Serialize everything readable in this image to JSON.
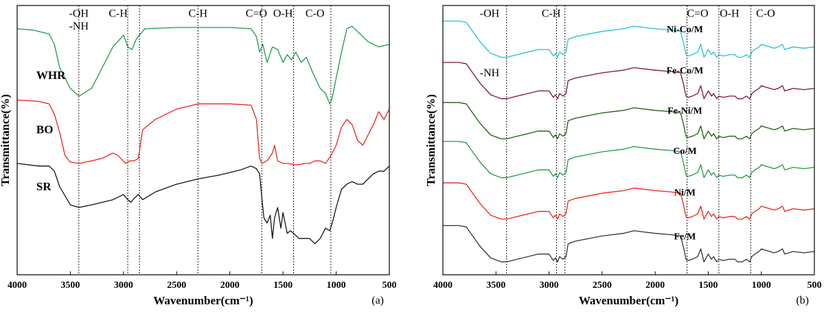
{
  "chart_data": [
    {
      "panel": "(a)",
      "type": "line",
      "xlabel": "Wavenumber(cm⁻¹)",
      "ylabel": "Transmittance(%)",
      "xlim": [
        4000,
        500
      ],
      "x_ticks": [
        4000,
        3500,
        3000,
        2500,
        2000,
        1500,
        1000,
        500
      ],
      "reference_lines": [
        3420,
        2960,
        2850,
        2300,
        1700,
        1400,
        1050
      ],
      "band_labels": [
        {
          "text": "-OH",
          "x": 3420,
          "y": 101
        },
        {
          "text": "-NH",
          "x": 3420,
          "y": 96
        },
        {
          "text": "C-H",
          "x": 3050,
          "y": 101
        },
        {
          "text": "C-H",
          "x": 2300,
          "y": 101
        },
        {
          "text": "C=O",
          "x": 1750,
          "y": 101
        },
        {
          "text": "O-H",
          "x": 1500,
          "y": 101
        },
        {
          "text": "C-O",
          "x": 1200,
          "y": 101
        }
      ],
      "ylim": [
        0,
        104
      ],
      "series": [
        {
          "name": "WHR",
          "color": "#1a9a46",
          "label_x": 3820,
          "label_y": 77,
          "x": [
            4000,
            3850,
            3700,
            3650,
            3600,
            3500,
            3420,
            3300,
            3200,
            3100,
            3000,
            2960,
            2920,
            2880,
            2800,
            2500,
            2200,
            2000,
            1800,
            1750,
            1720,
            1690,
            1650,
            1600,
            1550,
            1500,
            1460,
            1420,
            1380,
            1330,
            1280,
            1220,
            1150,
            1100,
            1060,
            1040,
            1000,
            950,
            900,
            850,
            800,
            750,
            700,
            600,
            500
          ],
          "y": [
            95,
            94.5,
            93,
            89,
            80,
            72,
            69,
            72,
            80,
            88,
            92.5,
            88,
            87,
            91,
            95,
            95.5,
            95.5,
            95.5,
            95,
            92,
            86,
            89,
            82,
            88,
            87,
            82,
            85,
            83,
            86,
            82,
            84,
            78,
            72,
            70,
            66,
            68,
            76,
            86,
            95,
            96,
            94,
            92,
            90,
            88,
            89
          ]
        },
        {
          "name": "BO",
          "color": "#e8231b",
          "label_x": 3820,
          "label_y": 56,
          "x": [
            4000,
            3800,
            3700,
            3650,
            3600,
            3550,
            3500,
            3420,
            3300,
            3200,
            3100,
            3050,
            2980,
            2940,
            2900,
            2860,
            2820,
            2700,
            2500,
            2300,
            2200,
            2000,
            1800,
            1750,
            1720,
            1700,
            1650,
            1600,
            1580,
            1550,
            1500,
            1450,
            1400,
            1350,
            1300,
            1250,
            1200,
            1150,
            1100,
            1050,
            1000,
            950,
            900,
            850,
            800,
            750,
            700,
            650,
            600,
            550,
            500
          ],
          "y": [
            67.5,
            67,
            66,
            62,
            55,
            46,
            43.5,
            43,
            44,
            45,
            47,
            46,
            43,
            44,
            44,
            45,
            56,
            60,
            64,
            66,
            66,
            66,
            65.5,
            60,
            45,
            43,
            44,
            47,
            50,
            44,
            43,
            43,
            42.5,
            42.5,
            43,
            43,
            44,
            44,
            43,
            46,
            50,
            57,
            60,
            58,
            52,
            50,
            54,
            58,
            63,
            60,
            64
          ]
        },
        {
          "name": "SR",
          "color": "#111111",
          "label_x": 3820,
          "label_y": 34,
          "x": [
            4000,
            3800,
            3700,
            3650,
            3600,
            3500,
            3420,
            3300,
            3200,
            3100,
            3000,
            2960,
            2930,
            2900,
            2860,
            2820,
            2700,
            2500,
            2300,
            2100,
            2000,
            1900,
            1800,
            1750,
            1720,
            1700,
            1680,
            1650,
            1620,
            1600,
            1580,
            1550,
            1520,
            1500,
            1460,
            1430,
            1400,
            1350,
            1300,
            1250,
            1200,
            1150,
            1100,
            1060,
            1030,
            1000,
            950,
            900,
            850,
            800,
            750,
            700,
            650,
            600,
            550,
            500
          ],
          "y": [
            43,
            42,
            42,
            40,
            34,
            27,
            26,
            27,
            28,
            29,
            31,
            29,
            28,
            29.5,
            31,
            29,
            32,
            35,
            37,
            38.5,
            39.5,
            40.5,
            42,
            41,
            39,
            30,
            22,
            20,
            23,
            14,
            22,
            26,
            18,
            24,
            16,
            17,
            16,
            14,
            14,
            14,
            12,
            14,
            18,
            17,
            21,
            26,
            33,
            35,
            36,
            35,
            35,
            37,
            39,
            40,
            40,
            42
          ]
        }
      ]
    },
    {
      "panel": "(b)",
      "type": "line",
      "xlabel": "Wavenumber(cm⁻¹)",
      "ylabel": "Transmittance(%)",
      "xlim": [
        4000,
        500
      ],
      "x_ticks": [
        4000,
        3500,
        3000,
        2500,
        2000,
        1500,
        1000,
        500
      ],
      "reference_lines": [
        3400,
        2930,
        2850,
        1700,
        1400,
        1100
      ],
      "band_labels": [
        {
          "text": "-OH",
          "x": 3560,
          "y": 101
        },
        {
          "text": "-NH",
          "x": 3560,
          "y": 78
        },
        {
          "text": "C-H",
          "x": 2980,
          "y": 101
        },
        {
          "text": "C=O",
          "x": 1600,
          "y": 101
        },
        {
          "text": "O-H",
          "x": 1300,
          "y": 101
        },
        {
          "text": "C-O",
          "x": 960,
          "y": 101
        }
      ],
      "ylim": [
        0,
        104
      ],
      "series": [
        {
          "name": "Ni-Co/M",
          "color": "#22c1d1",
          "label_x": 1720,
          "label_y": 95,
          "offset": 0
        },
        {
          "name": "Fe-Co/M",
          "color": "#7a1238",
          "label_x": 1720,
          "label_y": 79,
          "offset": -16
        },
        {
          "name": "Fe-Ni/M",
          "color": "#1f5c11",
          "label_x": 1720,
          "label_y": 63.5,
          "offset": -31.5
        },
        {
          "name": "Co/M",
          "color": "#1a9a46",
          "label_x": 1720,
          "label_y": 48,
          "offset": -46.5
        },
        {
          "name": "Ni/M",
          "color": "#e8231b",
          "label_x": 1720,
          "label_y": 32,
          "offset": -62.5
        },
        {
          "name": "Fe/M",
          "color": "#333333",
          "label_x": 1720,
          "label_y": 15,
          "offset": -79
        }
      ],
      "base_spectrum": {
        "x": [
          4000,
          3850,
          3780,
          3720,
          3650,
          3550,
          3450,
          3400,
          3300,
          3100,
          3000,
          2960,
          2940,
          2920,
          2900,
          2870,
          2840,
          2820,
          2750,
          2500,
          2300,
          2200,
          2000,
          1850,
          1760,
          1730,
          1710,
          1690,
          1650,
          1600,
          1570,
          1540,
          1500,
          1470,
          1450,
          1420,
          1400,
          1360,
          1300,
          1250,
          1220,
          1180,
          1140,
          1110,
          1090,
          1060,
          1020,
          1000,
          960,
          920,
          880,
          840,
          800,
          780,
          740,
          700,
          600,
          500
        ],
        "y": [
          98,
          98,
          97.5,
          94,
          90,
          85.5,
          84,
          84,
          85,
          87,
          87,
          84.5,
          85.5,
          84,
          86,
          85,
          86,
          91,
          92,
          94,
          95,
          96,
          95,
          94.5,
          94,
          89,
          85,
          84.5,
          85,
          86,
          89,
          84,
          87,
          85,
          86,
          84,
          85,
          84.5,
          85,
          85,
          84,
          84,
          85,
          84,
          86,
          87,
          88,
          89,
          88.5,
          88,
          87.5,
          88,
          89,
          87,
          87.5,
          88,
          87.5,
          88
        ]
      }
    }
  ]
}
